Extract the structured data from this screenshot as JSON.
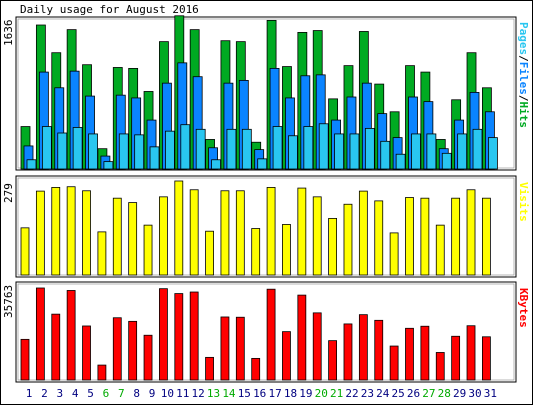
{
  "chart_data": [
    {
      "type": "bar",
      "title": "Daily usage for August 2016",
      "categories": [
        "1",
        "2",
        "3",
        "4",
        "5",
        "6",
        "7",
        "8",
        "9",
        "10",
        "11",
        "12",
        "13",
        "14",
        "15",
        "16",
        "17",
        "18",
        "19",
        "20",
        "21",
        "22",
        "23",
        "24",
        "25",
        "26",
        "27",
        "28",
        "29",
        "30",
        "31"
      ],
      "weekend_days": [
        "6",
        "7",
        "13",
        "14",
        "20",
        "21",
        "27",
        "28"
      ],
      "ymax_label": "1636",
      "ymax": 1636,
      "right_label_parts": [
        "Pages",
        "/",
        "Files",
        "/",
        "Hits"
      ],
      "colors": {
        "hits": "#00aa22",
        "files": "#0a84ff",
        "pages": "#29c6f0",
        "weekend_label": "#00aa00",
        "weekday_label": "#000080"
      },
      "series": [
        {
          "name": "Hits",
          "values": [
            460,
            1560,
            1260,
            1510,
            1130,
            220,
            1100,
            1090,
            840,
            1380,
            1660,
            1510,
            320,
            1390,
            1380,
            290,
            1610,
            1110,
            1480,
            1500,
            760,
            1120,
            1490,
            920,
            620,
            1120,
            1050,
            320,
            750,
            1260,
            880
          ]
        },
        {
          "name": "Files",
          "values": [
            250,
            1050,
            880,
            1060,
            790,
            140,
            800,
            770,
            530,
            930,
            1150,
            1000,
            230,
            930,
            960,
            210,
            1090,
            770,
            1010,
            1020,
            530,
            780,
            930,
            600,
            340,
            780,
            730,
            220,
            530,
            830,
            620
          ]
        },
        {
          "name": "Pages",
          "values": [
            100,
            460,
            390,
            450,
            380,
            80,
            380,
            370,
            240,
            410,
            480,
            430,
            100,
            430,
            430,
            110,
            460,
            360,
            460,
            490,
            380,
            380,
            440,
            300,
            160,
            380,
            380,
            170,
            380,
            430,
            340
          ]
        }
      ]
    },
    {
      "type": "bar",
      "categories": [
        "1",
        "2",
        "3",
        "4",
        "5",
        "6",
        "7",
        "8",
        "9",
        "10",
        "11",
        "12",
        "13",
        "14",
        "15",
        "16",
        "17",
        "18",
        "19",
        "20",
        "21",
        "22",
        "23",
        "24",
        "25",
        "26",
        "27",
        "28",
        "29",
        "30",
        "31"
      ],
      "ymax_label": "279",
      "ymax": 279,
      "right_label": "Visits",
      "colors": {
        "visits": "#ffff00"
      },
      "series": [
        {
          "name": "Visits",
          "values": [
            140,
            249,
            260,
            262,
            250,
            128,
            228,
            215,
            148,
            232,
            279,
            253,
            130,
            250,
            250,
            138,
            260,
            150,
            258,
            232,
            168,
            210,
            249,
            220,
            125,
            230,
            228,
            148,
            228,
            253,
            228
          ]
        }
      ]
    },
    {
      "type": "bar",
      "categories": [
        "1",
        "2",
        "3",
        "4",
        "5",
        "6",
        "7",
        "8",
        "9",
        "10",
        "11",
        "12",
        "13",
        "14",
        "15",
        "16",
        "17",
        "18",
        "19",
        "20",
        "21",
        "22",
        "23",
        "24",
        "25",
        "26",
        "27",
        "28",
        "29",
        "30",
        "31"
      ],
      "ymax_label": "35763",
      "ymax": 35763,
      "right_label": "KBytes",
      "colors": {
        "kbytes": "#ff0000"
      },
      "series": [
        {
          "name": "KBytes",
          "values": [
            15800,
            35763,
            25600,
            34800,
            21000,
            5800,
            24200,
            22800,
            17400,
            35500,
            33600,
            34200,
            8800,
            24500,
            24400,
            8400,
            35300,
            18800,
            33000,
            26100,
            15300,
            21800,
            25400,
            23200,
            13200,
            20100,
            20900,
            10700,
            17000,
            21100,
            16800
          ]
        }
      ]
    }
  ]
}
